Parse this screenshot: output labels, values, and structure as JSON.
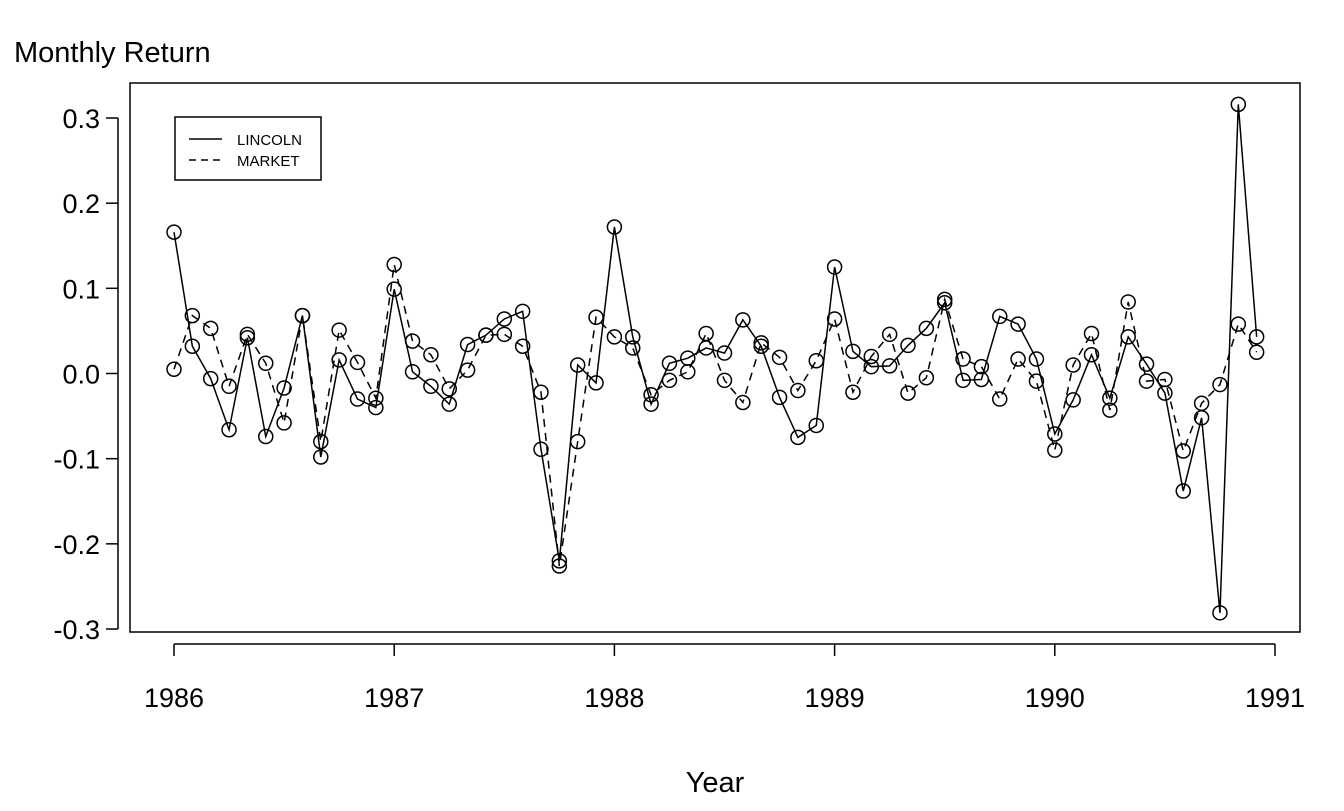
{
  "chart_data": {
    "type": "line",
    "title": "Monthly Return",
    "xlabel": "Year",
    "ylabel": "Monthly Return",
    "xlim": [
      1986,
      1991
    ],
    "ylim": [
      -0.3,
      0.3
    ],
    "x_ticks": [
      "1986",
      "1987",
      "1988",
      "1989",
      "1990",
      "1991"
    ],
    "y_ticks": [
      "-0.3",
      "-0.2",
      "-0.1",
      "0.0",
      "0.1",
      "0.2",
      "0.3"
    ],
    "legend": {
      "placement": "top-left",
      "entries": [
        "LINCOLN",
        "MARKET"
      ]
    },
    "x_start": 1986,
    "x_step_months": 1,
    "series": [
      {
        "name": "LINCOLN",
        "style": "solid",
        "values": [
          0.166,
          0.032,
          -0.006,
          -0.066,
          0.042,
          -0.074,
          -0.017,
          0.068,
          -0.098,
          0.016,
          -0.03,
          -0.04,
          0.099,
          0.002,
          -0.015,
          -0.036,
          0.034,
          0.045,
          0.064,
          0.073,
          -0.089,
          -0.22,
          0.01,
          -0.011,
          0.172,
          0.043,
          -0.036,
          0.012,
          0.018,
          0.03,
          0.024,
          0.063,
          0.032,
          -0.028,
          -0.075,
          -0.061,
          0.125,
          0.026,
          0.008,
          0.009,
          0.033,
          0.053,
          0.083,
          -0.008,
          -0.007,
          0.067,
          0.058,
          0.017,
          -0.071,
          -0.031,
          0.022,
          -0.029,
          0.043,
          0.011,
          -0.023,
          -0.138,
          -0.052,
          -0.281,
          0.316,
          0.043
        ]
      },
      {
        "name": "MARKET",
        "style": "dashed",
        "values": [
          0.005,
          0.068,
          0.053,
          -0.015,
          0.046,
          0.012,
          -0.058,
          0.068,
          -0.08,
          0.051,
          0.013,
          -0.029,
          0.128,
          0.038,
          0.022,
          -0.018,
          0.004,
          0.045,
          0.046,
          0.032,
          -0.022,
          -0.226,
          -0.08,
          0.066,
          0.043,
          0.03,
          -0.025,
          -0.008,
          0.002,
          0.047,
          -0.008,
          -0.034,
          0.036,
          0.019,
          -0.02,
          0.015,
          0.064,
          -0.022,
          0.02,
          0.046,
          -0.023,
          -0.005,
          0.087,
          0.017,
          0.008,
          -0.03,
          0.017,
          -0.009,
          -0.09,
          0.01,
          0.047,
          -0.043,
          0.084,
          -0.009,
          -0.007,
          -0.091,
          -0.035,
          -0.013,
          0.058,
          0.025
        ]
      }
    ]
  }
}
